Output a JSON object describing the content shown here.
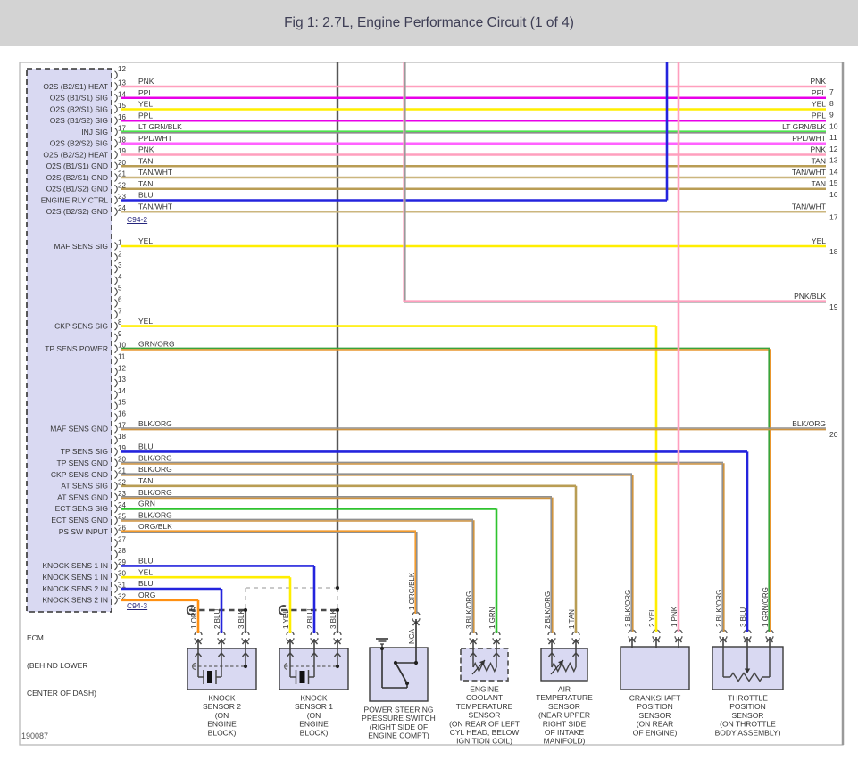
{
  "title": "Fig 1: 2.7L, Engine Performance Circuit (1 of 4)",
  "footer_id": "190087",
  "ecm": {
    "name": "ECM",
    "location_lines": [
      "(BEHIND LOWER",
      "CENTER OF DASH)"
    ],
    "connector_top": "C94-2",
    "connector_bottom": "C94-3"
  },
  "wire_colors": {
    "PNK": "#ff9fbe",
    "PPL": "#e800e8",
    "YEL": "#ffee00",
    "LT GRN/BLK": [
      "#4ce64c",
      "#8c8c8c"
    ],
    "PPL/WHT": "#ff62ff",
    "TAN": "#b99d54",
    "TAN/WHT": "#cbb67e",
    "BLU": "#2424dd",
    "GRN/ORG": [
      "#3aa33a",
      "#e9962e"
    ],
    "BLK/ORG": [
      "#909090",
      "#cf9440"
    ],
    "GRN": "#2fc32f",
    "ORG/BLK": [
      "#f29b2e",
      "#8f8f8f"
    ],
    "ORG": "#ff9012",
    "PNK/BLK": [
      "#ff9fbe",
      "#9a9a9a"
    ],
    "BLK": "#565656"
  },
  "connector_c94_2": {
    "partial_top_pin": "12",
    "pins": [
      {
        "pin": "13",
        "color": "PNK",
        "signal": "O2S (B2/S1) HEAT",
        "exit_pin": "7"
      },
      {
        "pin": "14",
        "color": "PPL",
        "signal": "O2S (B1/S1) SIG",
        "exit_pin": "8"
      },
      {
        "pin": "15",
        "color": "YEL",
        "signal": "O2S (B2/S1) SIG",
        "exit_pin": "9"
      },
      {
        "pin": "16",
        "color": "PPL",
        "signal": "O2S (B1/S2) SIG",
        "exit_pin": "10"
      },
      {
        "pin": "17",
        "color": "LT GRN/BLK",
        "signal": "INJ SIG",
        "exit_pin": "11"
      },
      {
        "pin": "18",
        "color": "PPL/WHT",
        "signal": "O2S (B2/S2) SIG",
        "exit_pin": "12"
      },
      {
        "pin": "19",
        "color": "PNK",
        "signal": "O2S (B2/S2) HEAT",
        "exit_pin": "13"
      },
      {
        "pin": "20",
        "color": "TAN",
        "signal": "O2S (B1/S1) GND",
        "exit_pin": "14"
      },
      {
        "pin": "21",
        "color": "TAN/WHT",
        "signal": "O2S (B2/S1) GND",
        "exit_pin": "15"
      },
      {
        "pin": "22",
        "color": "TAN",
        "signal": "O2S (B1/S2) GND",
        "exit_pin": "16"
      },
      {
        "pin": "23",
        "color": "BLU",
        "signal": "ENGINE RLY CTRL",
        "route": "up"
      },
      {
        "pin": "24",
        "color": "TAN/WHT",
        "signal": "O2S (B2/S2) GND",
        "exit_pin": "17"
      }
    ]
  },
  "connector_c94_3": {
    "pins": [
      {
        "pin": "1",
        "color": "YEL",
        "signal": "MAF SENS SIG",
        "exit_pin": "18"
      },
      {
        "pin": "2"
      },
      {
        "pin": "3"
      },
      {
        "pin": "4"
      },
      {
        "pin": "5"
      },
      {
        "pin": "6"
      },
      {
        "pin": "7"
      },
      {
        "pin": "8",
        "color": "YEL",
        "signal": "CKP SENS SIG",
        "to": "crank.2"
      },
      {
        "pin": "9"
      },
      {
        "pin": "10",
        "color": "GRN/ORG",
        "signal": "TP SENS POWER",
        "to": "tps.1"
      },
      {
        "pin": "11"
      },
      {
        "pin": "12"
      },
      {
        "pin": "13"
      },
      {
        "pin": "14"
      },
      {
        "pin": "15"
      },
      {
        "pin": "16"
      },
      {
        "pin": "17",
        "color": "BLK/ORG",
        "signal": "MAF SENS GND",
        "exit_pin": "20"
      },
      {
        "pin": "18"
      },
      {
        "pin": "19",
        "color": "BLU",
        "signal": "TP SENS SIG",
        "to": "tps.3"
      },
      {
        "pin": "20",
        "color": "BLK/ORG",
        "signal": "TP SENS GND",
        "to": "tps.2"
      },
      {
        "pin": "21",
        "color": "BLK/ORG",
        "signal": "CKP SENS GND",
        "to": "crank.3"
      },
      {
        "pin": "22",
        "color": "TAN",
        "signal": "AT SENS SIG",
        "to": "at.1"
      },
      {
        "pin": "23",
        "color": "BLK/ORG",
        "signal": "AT SENS GND",
        "to": "at.2"
      },
      {
        "pin": "24",
        "color": "GRN",
        "signal": "ECT SENS SIG",
        "to": "ect.1"
      },
      {
        "pin": "25",
        "color": "BLK/ORG",
        "signal": "ECT SENS GND",
        "to": "ect.3"
      },
      {
        "pin": "26",
        "color": "ORG/BLK",
        "signal": "PS SW INPUT",
        "to": "ps.1"
      },
      {
        "pin": "27"
      },
      {
        "pin": "28"
      },
      {
        "pin": "29",
        "color": "BLU",
        "signal": "KNOCK SENS 1 IN",
        "to": "knock1.2"
      },
      {
        "pin": "30",
        "color": "YEL",
        "signal": "KNOCK SENS 1 IN",
        "to": "knock1.1"
      },
      {
        "pin": "31",
        "color": "BLU",
        "signal": "KNOCK SENS 2 IN",
        "to": "knock2.2"
      },
      {
        "pin": "32",
        "color": "ORG",
        "signal": "KNOCK SENS 2 IN",
        "to": "knock2.1"
      }
    ]
  },
  "offpage_wires": [
    {
      "color": "PNK/BLK",
      "from": "top",
      "exit_pin": "19"
    },
    {
      "color": "PNK",
      "from": "top",
      "to": "crank.1"
    },
    {
      "color": "BLK",
      "from": "top",
      "to": "knock-shields"
    }
  ],
  "components": [
    {
      "id": "knock2",
      "type": "knock",
      "name_lines": [
        "KNOCK",
        "SENSOR 2",
        "(ON",
        "ENGINE",
        "BLOCK)"
      ],
      "pins": [
        {
          "n": "1",
          "color": "ORG"
        },
        {
          "n": "2",
          "color": "BLU"
        },
        {
          "n": "3",
          "color": "BLK"
        }
      ]
    },
    {
      "id": "knock1",
      "type": "knock",
      "name_lines": [
        "KNOCK",
        "SENSOR 1",
        "(ON",
        "ENGINE",
        "BLOCK)"
      ],
      "pins": [
        {
          "n": "1",
          "color": "YEL"
        },
        {
          "n": "2",
          "color": "BLU"
        },
        {
          "n": "3",
          "color": "BLK"
        }
      ]
    },
    {
      "id": "ps",
      "type": "switch",
      "name_lines": [
        "POWER STEERING",
        "PRESSURE SWITCH",
        "(RIGHT SIDE OF",
        "ENGINE COMPT)"
      ],
      "pins": [
        {
          "n": "1",
          "color": "ORG/BLK",
          "tag": "NCA"
        }
      ]
    },
    {
      "id": "ect",
      "type": "thermistor",
      "border": "dashed",
      "name_lines": [
        "ENGINE",
        "COOLANT",
        "TEMPERATURE",
        "SENSOR",
        "(ON REAR OF LEFT",
        "CYL HEAD, BELOW",
        "IGNITION COIL)"
      ],
      "pins": [
        {
          "n": "3",
          "color": "BLK/ORG"
        },
        {
          "n": "1",
          "color": "GRN"
        }
      ]
    },
    {
      "id": "at",
      "type": "thermistor",
      "name_lines": [
        "AIR",
        "TEMPERATURE",
        "SENSOR",
        "(NEAR UPPER",
        "RIGHT SIDE",
        "OF INTAKE",
        "MANIFOLD)"
      ],
      "pins": [
        {
          "n": "2",
          "color": "BLK/ORG"
        },
        {
          "n": "1",
          "color": "TAN"
        }
      ]
    },
    {
      "id": "crank",
      "type": "plain",
      "name_lines": [
        "CRANKSHAFT",
        "POSITION",
        "SENSOR",
        "(ON REAR",
        "OF ENGINE)"
      ],
      "pins": [
        {
          "n": "3",
          "color": "BLK/ORG"
        },
        {
          "n": "2",
          "color": "YEL"
        },
        {
          "n": "1",
          "color": "PNK"
        }
      ]
    },
    {
      "id": "tps",
      "type": "potentiometer",
      "name_lines": [
        "THROTTLE",
        "POSITION",
        "SENSOR",
        "(ON THROTTLE",
        "BODY ASSEMBLY)"
      ],
      "pins": [
        {
          "n": "2",
          "color": "BLK/ORG"
        },
        {
          "n": "3",
          "color": "BLU"
        },
        {
          "n": "1",
          "color": "GRN/ORG"
        }
      ]
    }
  ]
}
